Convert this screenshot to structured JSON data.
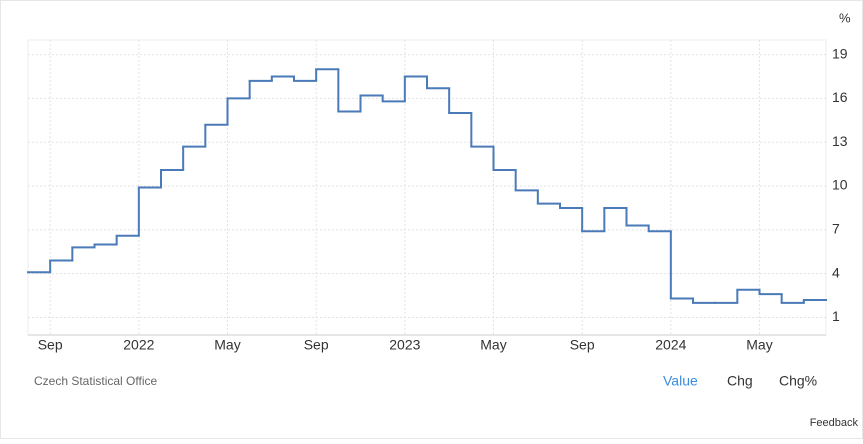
{
  "chart_data": {
    "type": "step",
    "unit": "%",
    "source": "Czech Statistical Office",
    "categories": [
      null,
      "Sep",
      null,
      null,
      null,
      "2022",
      null,
      null,
      null,
      "May",
      null,
      null,
      null,
      "Sep",
      null,
      null,
      null,
      "2023",
      null,
      null,
      null,
      "May",
      null,
      null,
      null,
      "Sep",
      null,
      null,
      null,
      "2024",
      null,
      null,
      null,
      "May",
      null,
      null
    ],
    "values": [
      4.1,
      4.9,
      5.8,
      6.0,
      6.6,
      9.9,
      11.1,
      12.7,
      14.2,
      16.0,
      17.2,
      17.5,
      17.2,
      18.0,
      15.1,
      16.2,
      15.8,
      17.5,
      16.7,
      15.0,
      12.7,
      11.1,
      9.7,
      8.8,
      8.5,
      6.9,
      8.5,
      7.3,
      6.9,
      2.3,
      2.0,
      2.0,
      2.9,
      2.6,
      2.0,
      2.2
    ],
    "color": "#4a7ab8",
    "ylim": [
      -0.2,
      20
    ],
    "yticks": [
      1,
      4,
      7,
      10,
      13,
      16,
      19
    ],
    "grid": true,
    "buttons": [
      "Value",
      "Chg",
      "Chg%"
    ],
    "feedback": "Feedback"
  }
}
